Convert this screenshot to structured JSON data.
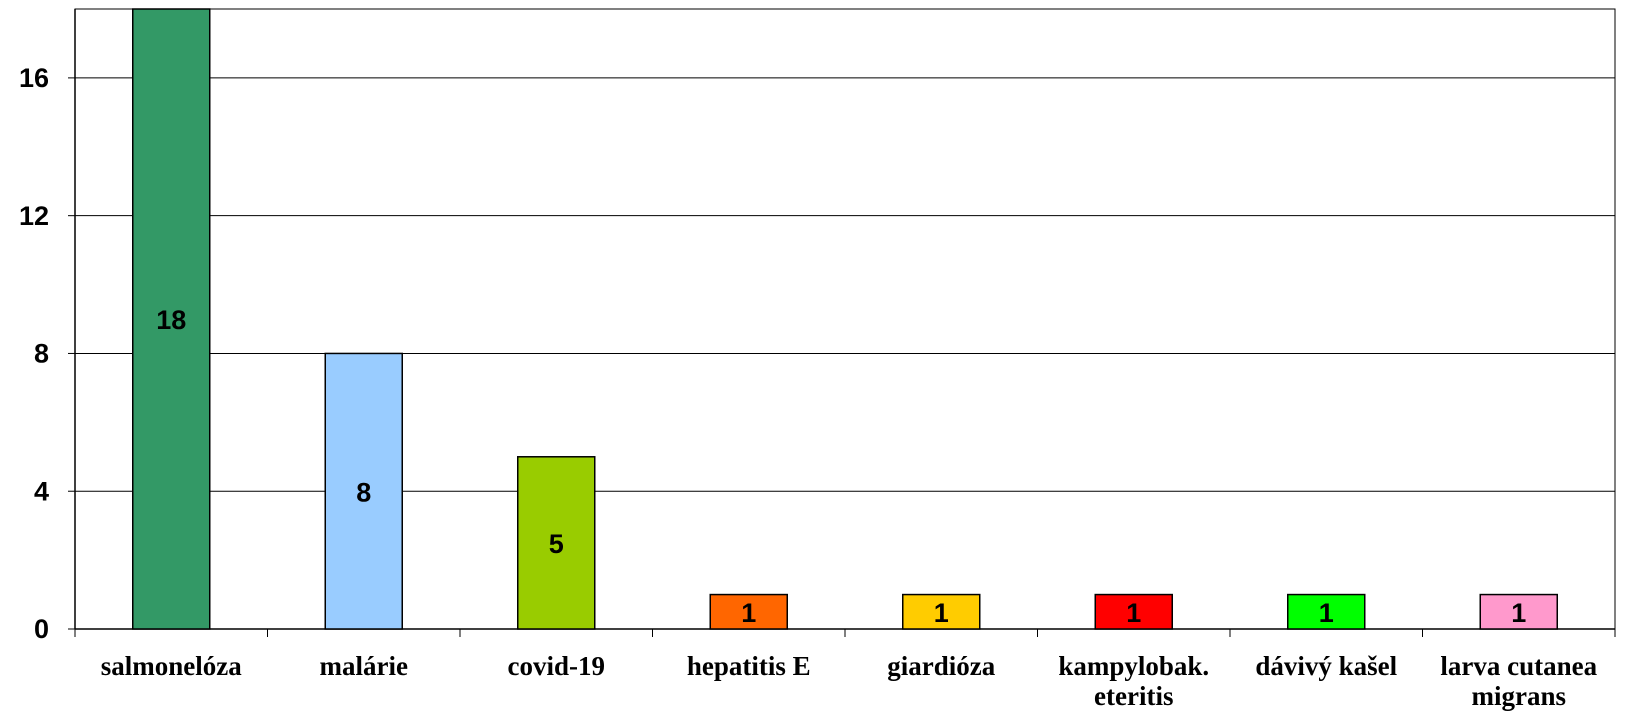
{
  "chart_data": {
    "type": "bar",
    "categories": [
      "salmonelóza",
      "malárie",
      "covid-19",
      "hepatitis E",
      "giardióza",
      "kampylobak. eteritis",
      "dávivý kašel",
      "larva cutanea migrans"
    ],
    "values": [
      18,
      8,
      5,
      1,
      1,
      1,
      1,
      1
    ],
    "colors": [
      "#339966",
      "#99ccff",
      "#99cc00",
      "#ff6600",
      "#ffcc00",
      "#ff0000",
      "#00ff00",
      "#ff99cc"
    ],
    "ylim": [
      0,
      18
    ],
    "yticks": [
      0,
      4,
      8,
      12,
      16
    ],
    "grid": true
  }
}
